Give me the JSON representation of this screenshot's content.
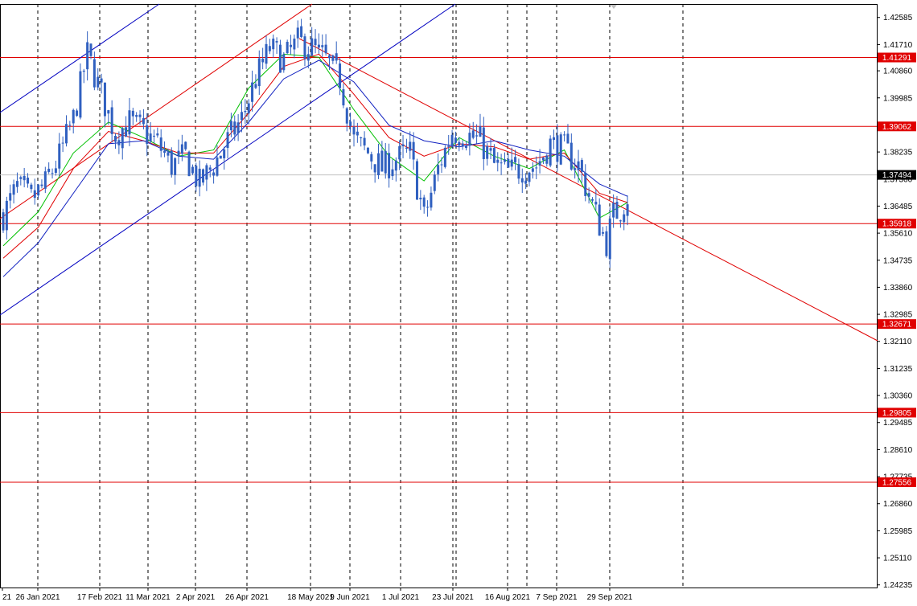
{
  "chart_data": {
    "type": "candlestick",
    "price_axis": {
      "ticks": [
        "1.42585",
        "1.41710",
        "1.40860",
        "1.39985",
        "1.39110",
        "1.38235",
        "1.37360",
        "1.36485",
        "1.35610",
        "1.34735",
        "1.33860",
        "1.32985",
        "1.32110",
        "1.31235",
        "1.30360",
        "1.29485",
        "1.28610",
        "1.27735",
        "1.26860",
        "1.25985",
        "1.25110",
        "1.24235"
      ],
      "range": [
        1.2415,
        1.4302
      ]
    },
    "date_axis": {
      "labels": [
        "21",
        "26 Jan 2021",
        "17 Feb 2021",
        "11 Mar 2021",
        "2 Apr 2021",
        "26 Apr 2021",
        "18 May 2021",
        "9 Jun 2021",
        "1 Jul 2021",
        "23 Jul 2021",
        "16 Aug 2021",
        "7 Sep 2021",
        "29 Sep 2021"
      ]
    },
    "horizontal_levels": [
      {
        "value": 1.41291,
        "label": "1.41291"
      },
      {
        "value": 1.39062,
        "label": "1.39062"
      },
      {
        "value": 1.35918,
        "label": "1.35918"
      },
      {
        "value": 1.32671,
        "label": "1.32671"
      },
      {
        "value": 1.29805,
        "label": "1.29805"
      },
      {
        "value": 1.27556,
        "label": "1.27556"
      }
    ],
    "current_price": {
      "value": 1.37494,
      "label": "1.37494"
    },
    "close_points": [
      [
        0,
        1.362
      ],
      [
        4,
        1.371
      ],
      [
        8,
        1.367
      ],
      [
        12,
        1.372
      ],
      [
        16,
        1.381
      ],
      [
        20,
        1.393
      ],
      [
        24,
        1.414
      ],
      [
        28,
        1.401
      ],
      [
        32,
        1.388
      ],
      [
        36,
        1.392
      ],
      [
        40,
        1.389
      ],
      [
        44,
        1.385
      ],
      [
        48,
        1.378
      ],
      [
        52,
        1.381
      ],
      [
        56,
        1.372
      ],
      [
        60,
        1.378
      ],
      [
        64,
        1.386
      ],
      [
        68,
        1.393
      ],
      [
        72,
        1.406
      ],
      [
        76,
        1.416
      ],
      [
        80,
        1.412
      ],
      [
        84,
        1.418
      ],
      [
        88,
        1.416
      ],
      [
        92,
        1.412
      ],
      [
        96,
        1.406
      ],
      [
        100,
        1.386
      ],
      [
        104,
        1.382
      ],
      [
        108,
        1.377
      ],
      [
        112,
        1.38
      ],
      [
        116,
        1.382
      ],
      [
        120,
        1.361
      ],
      [
        124,
        1.377
      ],
      [
        128,
        1.389
      ],
      [
        132,
        1.388
      ],
      [
        136,
        1.386
      ],
      [
        140,
        1.378
      ],
      [
        144,
        1.376
      ],
      [
        148,
        1.377
      ],
      [
        152,
        1.378
      ],
      [
        156,
        1.385
      ],
      [
        160,
        1.383
      ],
      [
        164,
        1.378
      ],
      [
        168,
        1.365
      ],
      [
        172,
        1.353
      ],
      [
        174,
        1.362
      ],
      [
        176,
        1.364
      ],
      [
        178,
        1.368
      ]
    ],
    "moving_averages": [
      {
        "color": "#00c000",
        "points": [
          [
            0,
            1.352
          ],
          [
            10,
            1.363
          ],
          [
            20,
            1.382
          ],
          [
            30,
            1.392
          ],
          [
            40,
            1.387
          ],
          [
            50,
            1.381
          ],
          [
            60,
            1.383
          ],
          [
            70,
            1.403
          ],
          [
            80,
            1.414
          ],
          [
            90,
            1.413
          ],
          [
            100,
            1.396
          ],
          [
            110,
            1.381
          ],
          [
            120,
            1.373
          ],
          [
            130,
            1.387
          ],
          [
            140,
            1.381
          ],
          [
            150,
            1.377
          ],
          [
            160,
            1.383
          ],
          [
            170,
            1.361
          ],
          [
            178,
            1.366
          ]
        ]
      },
      {
        "color": "#e00000",
        "points": [
          [
            0,
            1.348
          ],
          [
            10,
            1.358
          ],
          [
            20,
            1.377
          ],
          [
            30,
            1.389
          ],
          [
            40,
            1.386
          ],
          [
            50,
            1.382
          ],
          [
            60,
            1.382
          ],
          [
            70,
            1.395
          ],
          [
            80,
            1.41
          ],
          [
            90,
            1.414
          ],
          [
            100,
            1.401
          ],
          [
            110,
            1.387
          ],
          [
            120,
            1.381
          ],
          [
            130,
            1.385
          ],
          [
            140,
            1.384
          ],
          [
            150,
            1.38
          ],
          [
            160,
            1.382
          ],
          [
            170,
            1.369
          ],
          [
            178,
            1.366
          ]
        ]
      },
      {
        "color": "#1020c0",
        "points": [
          [
            0,
            1.342
          ],
          [
            10,
            1.353
          ],
          [
            20,
            1.369
          ],
          [
            30,
            1.385
          ],
          [
            40,
            1.386
          ],
          [
            50,
            1.381
          ],
          [
            60,
            1.38
          ],
          [
            70,
            1.392
          ],
          [
            80,
            1.406
          ],
          [
            90,
            1.412
          ],
          [
            100,
            1.405
          ],
          [
            110,
            1.391
          ],
          [
            120,
            1.386
          ],
          [
            130,
            1.384
          ],
          [
            140,
            1.386
          ],
          [
            150,
            1.383
          ],
          [
            160,
            1.381
          ],
          [
            170,
            1.372
          ],
          [
            178,
            1.368
          ]
        ]
      }
    ]
  }
}
